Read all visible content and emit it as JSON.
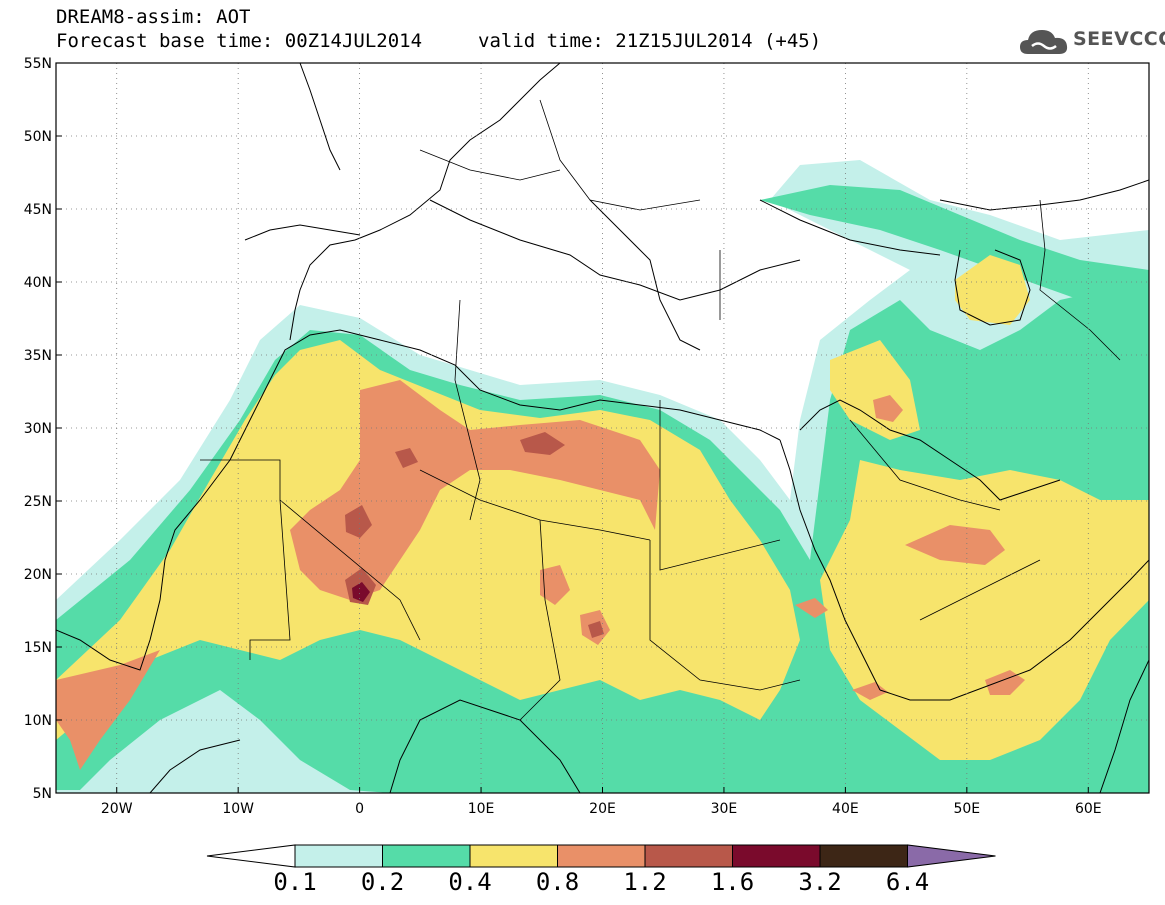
{
  "header": {
    "title_line1": "DREAM8-assim: AOT",
    "title_line2": "Forecast base time: 00Z14JUL2014",
    "valid_time": "valid time: 21Z15JUL2014 (+45)",
    "logo_text": "SEEVCCC"
  },
  "map": {
    "variable": "AOT",
    "lat_labels": [
      "55N",
      "50N",
      "45N",
      "40N",
      "35N",
      "30N",
      "25N",
      "20N",
      "15N",
      "10N",
      "5N"
    ],
    "lat_values": [
      55,
      50,
      45,
      40,
      35,
      30,
      25,
      20,
      15,
      10,
      5
    ],
    "lon_labels": [
      "20W",
      "10W",
      "0",
      "10E",
      "20E",
      "30E",
      "40E",
      "50E",
      "60E"
    ],
    "lon_values": [
      -20,
      -10,
      0,
      10,
      20,
      30,
      40,
      50,
      60
    ],
    "lon_range": [
      -25,
      65
    ],
    "lat_range": [
      5,
      55
    ],
    "grid": "dotted",
    "colors": {
      "c01": "#c4f0ea",
      "c02": "#55dca8",
      "c04": "#f7e46c",
      "c08": "#e99068",
      "c12": "#b8584a",
      "c16": "#7a0a2c",
      "c32": "#3d2616",
      "c64": "#8a6aa8"
    }
  },
  "colorbar": {
    "labels": [
      "0.1",
      "0.2",
      "0.4",
      "0.8",
      "1.2",
      "1.6",
      "3.2",
      "6.4"
    ],
    "colors": [
      "#c4f0ea",
      "#55dca8",
      "#f7e46c",
      "#e99068",
      "#b8584a",
      "#7a0a2c",
      "#3d2616"
    ],
    "under_color": "#ffffff",
    "over_color": "#8a6aa8"
  }
}
